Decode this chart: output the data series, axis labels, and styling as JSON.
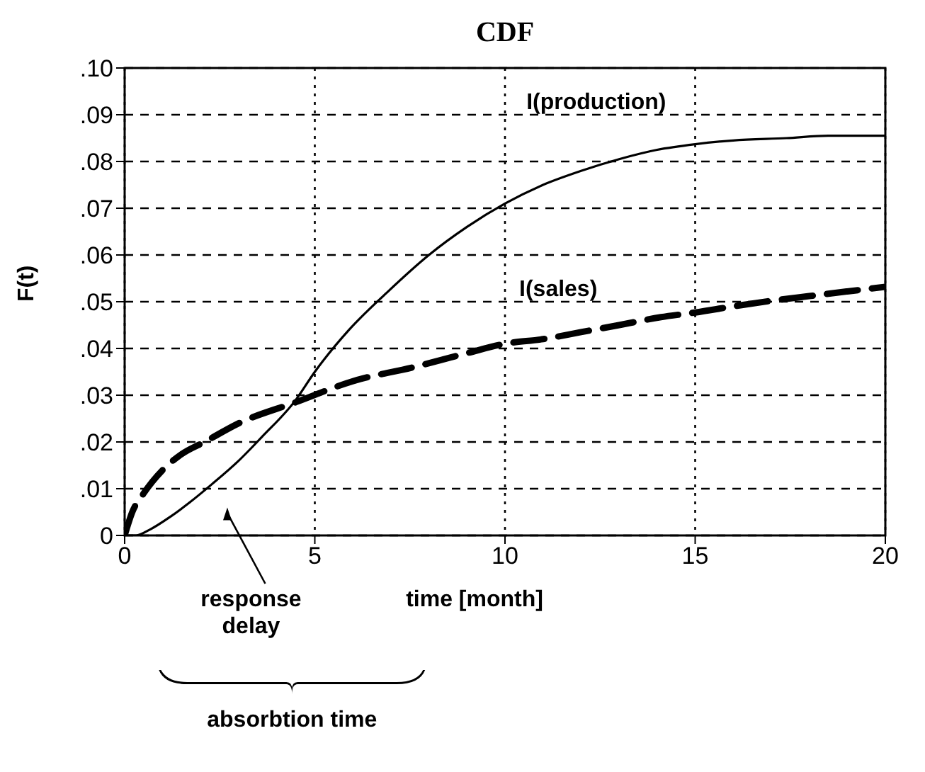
{
  "chart_data": {
    "type": "line",
    "title": "CDF",
    "xlabel": "time [month]",
    "ylabel": "F(t)",
    "xlim": [
      0,
      20
    ],
    "xticks": [
      0,
      5,
      10,
      15,
      20
    ],
    "ylim": [
      0,
      0.1
    ],
    "yticks": [
      {
        "value": 0,
        "label": "0"
      },
      {
        "value": 0.01,
        "label": ".01"
      },
      {
        "value": 0.02,
        "label": ".02"
      },
      {
        "value": 0.03,
        "label": ".03"
      },
      {
        "value": 0.04,
        "label": ".04"
      },
      {
        "value": 0.05,
        "label": ".05"
      },
      {
        "value": 0.06,
        "label": ".06"
      },
      {
        "value": 0.07,
        "label": ".07"
      },
      {
        "value": 0.08,
        "label": ".08"
      },
      {
        "value": 0.09,
        "label": ".09"
      },
      {
        "value": 0.1,
        "label": ".10"
      }
    ],
    "grid": true,
    "marker": "none",
    "series": [
      {
        "name": "I(production)",
        "color": "#000000",
        "line_style": "solid",
        "x": [
          0,
          0.3,
          0.65,
          1.2,
          1.7,
          2.3,
          3,
          3.6,
          4.5,
          5,
          5.9,
          6.9,
          8,
          9,
          10,
          11,
          12,
          13,
          14,
          15,
          16,
          17.4,
          18.5,
          20
        ],
        "values": [
          0,
          0,
          0.0012,
          0.004,
          0.007,
          0.011,
          0.016,
          0.021,
          0.029,
          0.035,
          0.044,
          0.052,
          0.06,
          0.066,
          0.071,
          0.075,
          0.078,
          0.0805,
          0.0825,
          0.0837,
          0.0845,
          0.085,
          0.0855,
          0.0855
        ]
      },
      {
        "name": "I(sales)",
        "color": "#000000",
        "line_style": "dashed",
        "x": [
          0,
          0.2,
          0.5,
          1,
          1.5,
          2.1,
          3,
          4.5,
          6,
          7.6,
          9,
          10,
          11,
          12,
          13,
          14.1,
          15,
          16,
          17,
          18,
          19,
          20
        ],
        "values": [
          0,
          0.005,
          0.009,
          0.014,
          0.0174,
          0.02,
          0.024,
          0.0285,
          0.033,
          0.036,
          0.039,
          0.041,
          0.042,
          0.0435,
          0.045,
          0.0467,
          0.0477,
          0.049,
          0.0502,
          0.0512,
          0.0522,
          0.0532
        ]
      }
    ],
    "annotations": [
      "response delay",
      "absorbtion time"
    ]
  }
}
